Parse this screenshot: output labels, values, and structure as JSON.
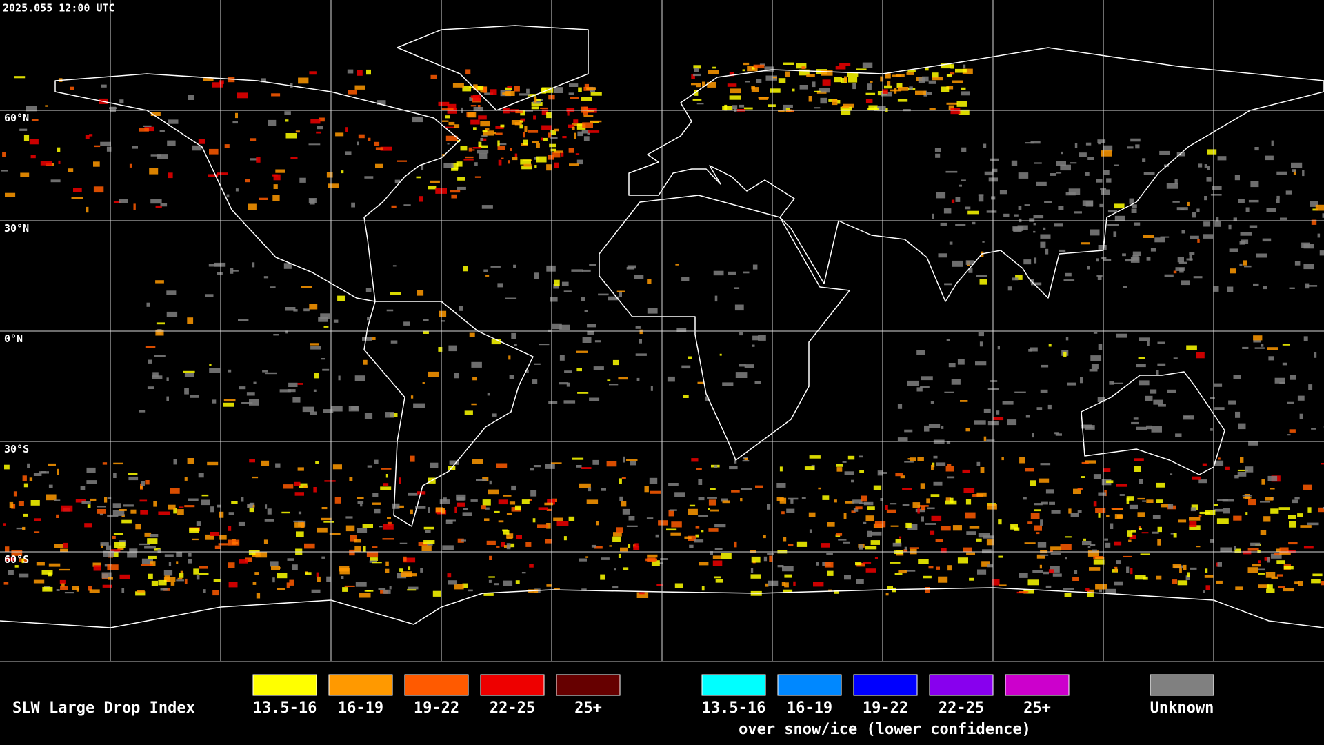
{
  "header": {
    "timestamp": "2025.055 12:00 UTC"
  },
  "map": {
    "lat_labels": [
      "60°N",
      "30°N",
      "0°N",
      "30°S",
      "60°S"
    ]
  },
  "legend": {
    "title": "SLW Large Drop Index",
    "items": [
      {
        "label": "13.5-16",
        "color": "#ffff00"
      },
      {
        "label": "16-19",
        "color": "#ff9900"
      },
      {
        "label": "19-22",
        "color": "#ff5a00"
      },
      {
        "label": "22-25",
        "color": "#ee0000"
      },
      {
        "label": "25+",
        "color": "#660000"
      }
    ],
    "snow_items": [
      {
        "label": "13.5-16",
        "color": "#00ffff"
      },
      {
        "label": "16-19",
        "color": "#0088ff"
      },
      {
        "label": "19-22",
        "color": "#0000ff"
      },
      {
        "label": "22-25",
        "color": "#8800ee"
      },
      {
        "label": "25+",
        "color": "#cc00cc"
      }
    ],
    "snow_caption": "over snow/ice (lower confidence)",
    "unknown": {
      "label": "Unknown",
      "color": "#808080"
    }
  }
}
